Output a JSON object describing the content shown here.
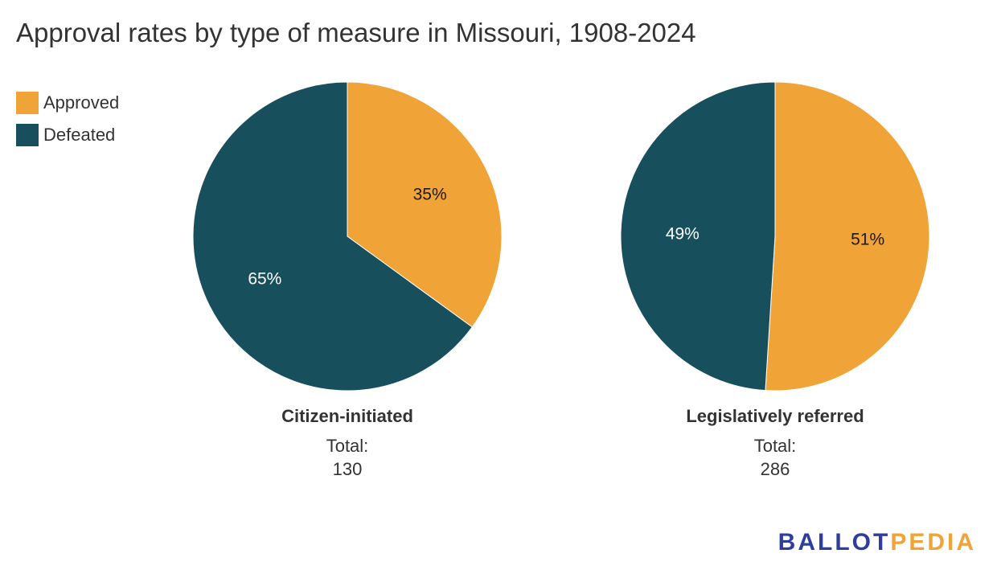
{
  "title": "Approval rates by type of measure in Missouri, 1908-2024",
  "colors": {
    "approved": "#F0A336",
    "defeated": "#17505C",
    "logo_blue": "#2E3E9A",
    "logo_orange": "#F0A336"
  },
  "legend": [
    {
      "label": "Approved",
      "color": "#F0A336"
    },
    {
      "label": "Defeated",
      "color": "#17505C"
    }
  ],
  "chart_data": [
    {
      "type": "pie",
      "name": "Citizen-initiated",
      "total_label": "Total:",
      "total_value": "130",
      "slices": [
        {
          "label": "Approved",
          "value": 35,
          "display": "35%",
          "color": "#F0A336",
          "text_color": "#1a1a1a"
        },
        {
          "label": "Defeated",
          "value": 65,
          "display": "65%",
          "color": "#17505C",
          "text_color": "#ffffff"
        }
      ]
    },
    {
      "type": "pie",
      "name": "Legislatively referred",
      "total_label": "Total:",
      "total_value": "286",
      "slices": [
        {
          "label": "Approved",
          "value": 51,
          "display": "51%",
          "color": "#F0A336",
          "text_color": "#1a1a1a"
        },
        {
          "label": "Defeated",
          "value": 49,
          "display": "49%",
          "color": "#17505C",
          "text_color": "#ffffff"
        }
      ]
    }
  ],
  "logo": {
    "part1": "BALLOT",
    "part2": "PEDIA"
  }
}
